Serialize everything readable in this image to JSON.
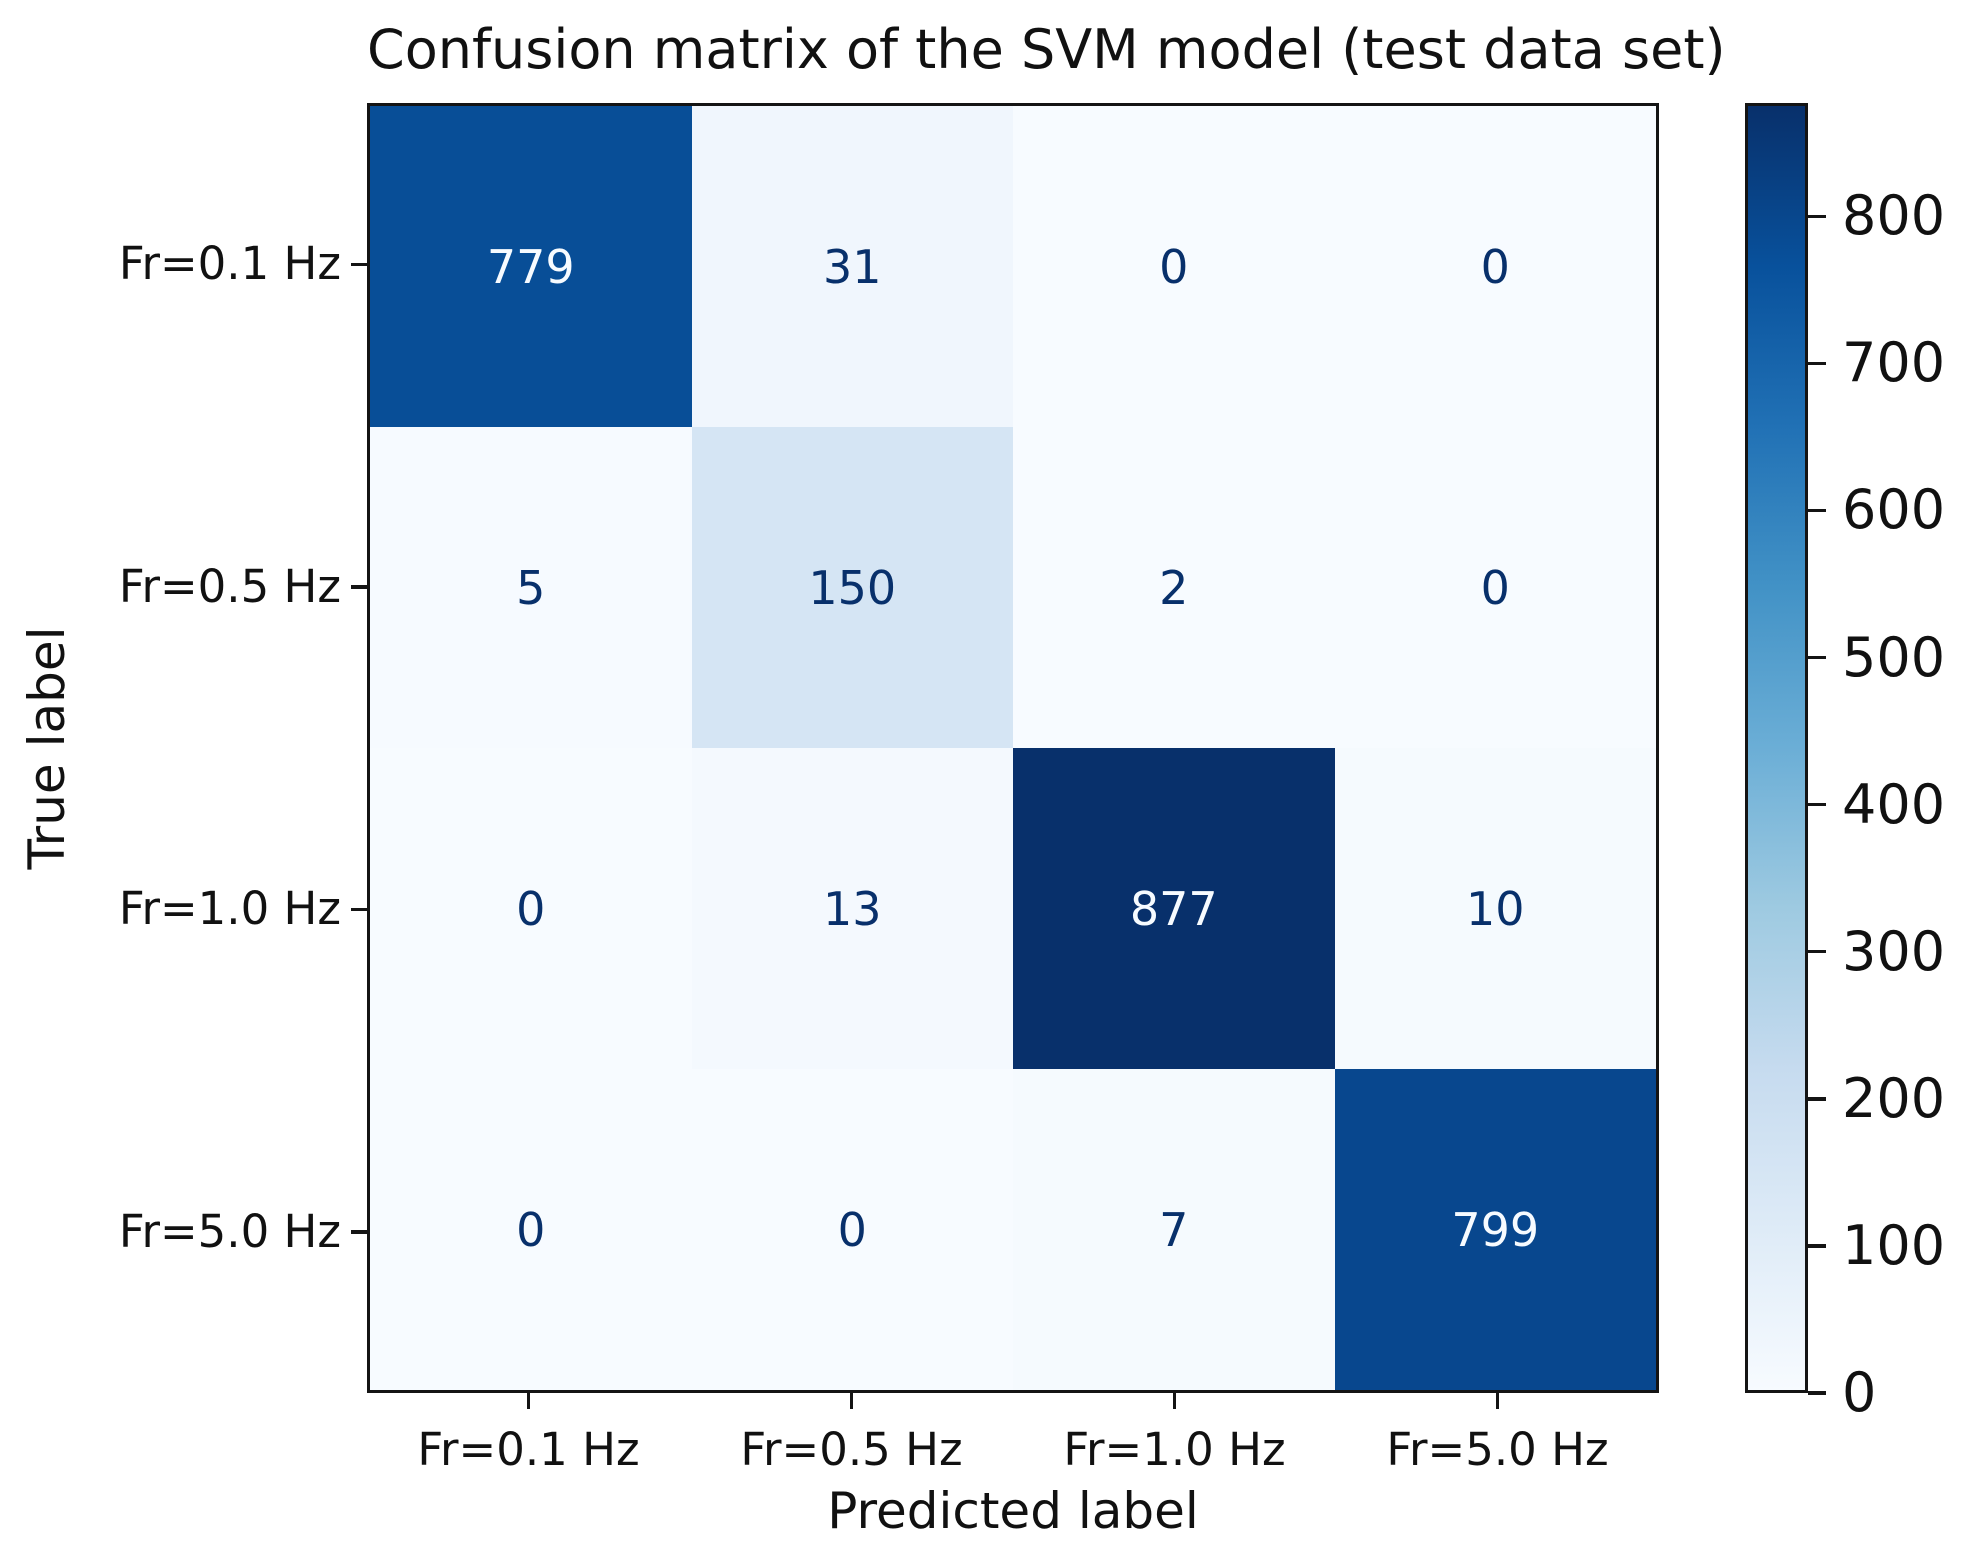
{
  "chart_data": {
    "type": "heatmap",
    "title": "Confusion matrix of the SVM model (test data set)",
    "xlabel": "Predicted label",
    "ylabel": "True label",
    "x_categories": [
      "Fr=0.1 Hz",
      "Fr=0.5 Hz",
      "Fr=1.0 Hz",
      "Fr=5.0 Hz"
    ],
    "y_categories": [
      "Fr=0.1 Hz",
      "Fr=0.5 Hz",
      "Fr=1.0 Hz",
      "Fr=5.0 Hz"
    ],
    "matrix": [
      [
        779,
        31,
        0,
        0
      ],
      [
        5,
        150,
        2,
        0
      ],
      [
        0,
        13,
        877,
        10
      ],
      [
        0,
        0,
        7,
        799
      ]
    ],
    "vmin": 0,
    "vmax": 877,
    "colormap": "Blues",
    "colormap_stops": [
      {
        "pos": 0.0,
        "color": "#f7fbff"
      },
      {
        "pos": 0.125,
        "color": "#deebf7"
      },
      {
        "pos": 0.25,
        "color": "#c6dbef"
      },
      {
        "pos": 0.375,
        "color": "#9ecae1"
      },
      {
        "pos": 0.5,
        "color": "#6baed6"
      },
      {
        "pos": 0.625,
        "color": "#4292c6"
      },
      {
        "pos": 0.75,
        "color": "#2171b5"
      },
      {
        "pos": 0.875,
        "color": "#08519c"
      },
      {
        "pos": 1.0,
        "color": "#08306b"
      }
    ],
    "colorbar_ticks": [
      0,
      100,
      200,
      300,
      400,
      500,
      600,
      700,
      800
    ],
    "colorbar_position": "right",
    "grid": false,
    "cell_text_color_on_dark": "#f7fbff",
    "cell_text_color_on_light": "#08306b",
    "spine_color": "#141414",
    "background_color": "#ffffff"
  }
}
